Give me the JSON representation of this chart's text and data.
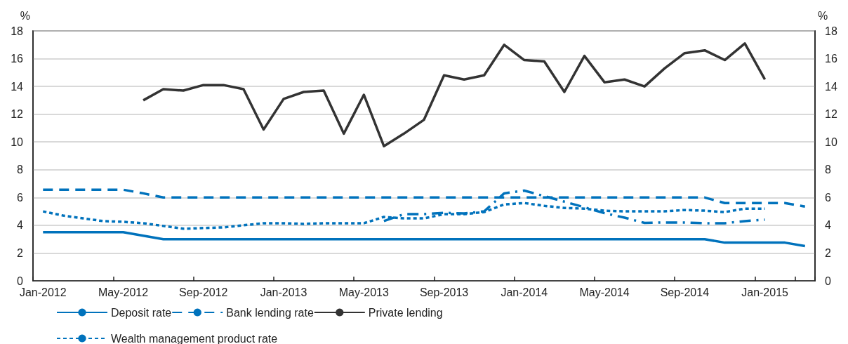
{
  "chart_data": {
    "type": "line",
    "ylabel": "%",
    "y2label": "%",
    "categories": [
      "Jan-2012",
      null,
      null,
      null,
      "May-2012",
      null,
      null,
      null,
      "Sep-2012",
      null,
      null,
      null,
      "Jan-2013",
      null,
      null,
      null,
      "May-2013",
      null,
      null,
      null,
      "Sep-2013",
      null,
      null,
      null,
      "Jan-2014",
      null,
      null,
      null,
      "May-2014",
      null,
      null,
      null,
      "Sep-2014",
      null,
      null,
      null,
      "Jan-2015",
      null,
      null
    ],
    "ylim": [
      0,
      18
    ],
    "yticks": [
      0,
      2,
      4,
      6,
      8,
      10,
      12,
      14,
      16,
      18
    ],
    "y2lim": [
      0,
      18
    ],
    "y2ticks": [
      0,
      2,
      4,
      6,
      8,
      10,
      12,
      14,
      16,
      18
    ],
    "grid": "y",
    "legend": "bottom",
    "marker": "none",
    "series": [
      {
        "name": "Deposit rate",
        "color": "#0072bc",
        "line_style": "solid",
        "values": [
          3.5,
          3.5,
          3.5,
          3.5,
          3.5,
          3.25,
          3.0,
          3.0,
          3.0,
          3.0,
          3.0,
          3.0,
          3.0,
          3.0,
          3.0,
          3.0,
          3.0,
          3.0,
          3.0,
          3.0,
          3.0,
          3.0,
          3.0,
          3.0,
          3.0,
          3.0,
          3.0,
          3.0,
          3.0,
          3.0,
          3.0,
          3.0,
          3.0,
          3.0,
          2.75,
          2.75,
          2.75,
          2.75,
          2.5
        ]
      },
      {
        "name": "Bank lending rate",
        "color": "#0072bc",
        "line_style": "dashed",
        "values": [
          6.56,
          6.56,
          6.56,
          6.56,
          6.56,
          6.3,
          6.0,
          6.0,
          6.0,
          6.0,
          6.0,
          6.0,
          6.0,
          6.0,
          6.0,
          6.0,
          6.0,
          6.0,
          6.0,
          6.0,
          6.0,
          6.0,
          6.0,
          6.0,
          6.0,
          6.0,
          6.0,
          6.0,
          6.0,
          6.0,
          6.0,
          6.0,
          6.0,
          6.0,
          5.6,
          5.6,
          5.6,
          5.6,
          5.35
        ]
      },
      {
        "name": "Private lending",
        "color": "#333333",
        "line_style": "solid",
        "values": [
          null,
          null,
          null,
          null,
          null,
          13.0,
          13.8,
          13.7,
          14.1,
          14.1,
          13.8,
          10.9,
          13.1,
          13.6,
          13.7,
          10.6,
          13.4,
          9.7,
          10.6,
          11.6,
          14.8,
          14.5,
          14.8,
          17.0,
          15.9,
          15.8,
          13.6,
          16.2,
          14.3,
          14.5,
          14.0,
          15.3,
          16.4,
          16.6,
          15.9,
          17.1,
          14.5,
          null,
          null
        ]
      },
      {
        "name": "Wealth management product rate",
        "color": "#0072bc",
        "line_style": "dotted",
        "values": [
          5.0,
          4.7,
          4.5,
          4.3,
          4.25,
          4.15,
          3.95,
          3.75,
          3.8,
          3.85,
          4.0,
          4.15,
          4.15,
          4.1,
          4.15,
          4.15,
          4.15,
          4.6,
          4.5,
          4.5,
          4.8,
          4.8,
          4.95,
          5.5,
          5.6,
          5.4,
          5.25,
          5.2,
          5.05,
          5.0,
          5.0,
          5.0,
          5.1,
          5.05,
          4.95,
          5.2,
          5.2,
          null,
          null
        ]
      },
      {
        "color": "#0072bc",
        "line_style": "dashdot",
        "values": [
          null,
          null,
          null,
          null,
          null,
          null,
          null,
          null,
          null,
          null,
          null,
          null,
          null,
          null,
          null,
          null,
          null,
          4.3,
          4.8,
          4.8,
          4.9,
          4.85,
          5.0,
          6.3,
          6.5,
          6.1,
          5.7,
          5.3,
          4.87,
          4.55,
          4.17,
          4.2,
          4.2,
          4.15,
          4.15,
          4.3,
          4.4,
          null,
          null
        ]
      }
    ]
  }
}
